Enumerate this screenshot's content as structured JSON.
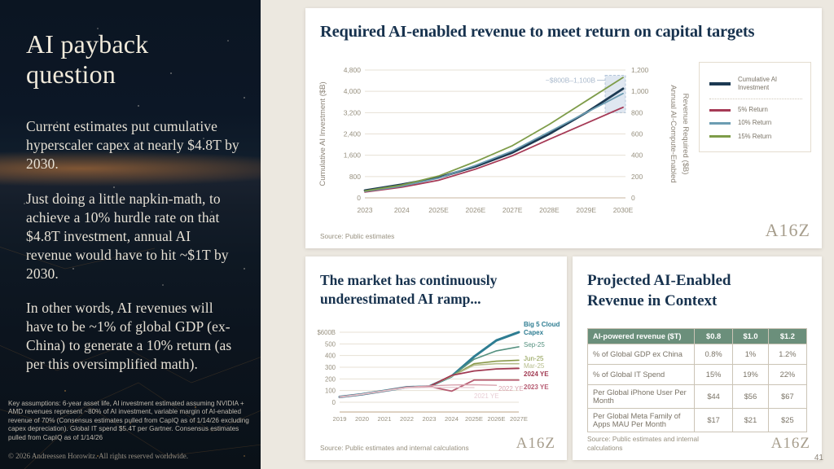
{
  "sidebar": {
    "title": "AI payback question",
    "paragraphs": [
      "Current estimates put cumulative hyperscaler capex at nearly $4.8T by 2030.",
      "Just doing a little napkin-math, to achieve a 10% hurdle rate on that $4.8T investment, annual AI revenue would have to hit ~$1T by 2030.",
      "In other words, AI revenues will have to be ~1% of global GDP (ex-China) to generate a 10% return (as per this oversimplified math)."
    ],
    "footnote": "Key assumptions: 6-year asset life, AI investment estimated assuming NVIDIA + AMD revenues represent ~80% of AI investment, variable margin of AI-enabled revenue of 70% (Consensus estimates pulled from CapIQ as of 1/14/26 excluding capex depreciation). Global IT spend $5.4T per Gartner. Consensus estimates pulled from CapIQ as of 1/14/26",
    "copyright": "© 2026 Andreessen Horowitz. All rights reserved worldwide."
  },
  "page_number": "41",
  "logo_text": "A16Z",
  "chart_data": [
    {
      "type": "line",
      "title": "Required AI-enabled revenue to meet return on capital targets",
      "source": "Source: Public estimates",
      "categories": [
        "2023",
        "2024",
        "2025E",
        "2026E",
        "2027E",
        "2028E",
        "2029E",
        "2030E"
      ],
      "left_axis": {
        "label": "Cumulative AI Investment ($B)",
        "max": 4800,
        "ticks_top_down": [
          "4,800",
          "4,000",
          "3,200",
          "2,400",
          "1,600",
          "800",
          "0"
        ]
      },
      "right_axis": {
        "label_lines": [
          "Annual AI-Compute-Enabled",
          "Revenue Required ($B)"
        ],
        "max": 1200,
        "ticks_top_down": [
          "1,200",
          "1,000",
          "800",
          "600",
          "400",
          "200",
          "0"
        ]
      },
      "annotation": {
        "text": "~$800B–1,100B",
        "band_right_axis": [
          800,
          1150
        ]
      },
      "legend_position": "right",
      "grid": true,
      "series": [
        {
          "name": "Cumulative AI Investment",
          "axis": "left",
          "color": "#1C3A52",
          "width": 2.8,
          "values": [
            280,
            500,
            760,
            1180,
            1700,
            2400,
            3200,
            4100
          ]
        },
        {
          "name": "5% Return",
          "axis": "right",
          "color": "#A63A56",
          "width": 1.8,
          "values": [
            55,
            100,
            165,
            270,
            395,
            550,
            700,
            850
          ]
        },
        {
          "name": "10% Return",
          "axis": "right",
          "color": "#6C9DB2",
          "width": 1.8,
          "values": [
            60,
            110,
            185,
            305,
            440,
            620,
            800,
            980
          ]
        },
        {
          "name": "15% Return",
          "axis": "right",
          "color": "#7E9C49",
          "width": 1.8,
          "values": [
            65,
            120,
            205,
            340,
            490,
            690,
            910,
            1130
          ]
        }
      ]
    },
    {
      "type": "line",
      "title": "The market has continuously underestimated AI ramp...",
      "source": "Source: Public estimates and internal calculations",
      "categories": [
        "2019",
        "2020",
        "2021",
        "2022",
        "2023",
        "2024",
        "2025E",
        "2026E",
        "2027E"
      ],
      "y_axis": {
        "max": 600,
        "ticks_top_down": [
          "$600B",
          "500",
          "400",
          "300",
          "200",
          "100",
          "0"
        ]
      },
      "grid": true,
      "series": [
        {
          "name": "Big 5 Cloud Capex",
          "color": "#2E7D92",
          "width": 3,
          "values": [
            45,
            68,
            98,
            128,
            135,
            222,
            390,
            530,
            600
          ]
        },
        {
          "name": "Sep-25",
          "color": "#55917F",
          "width": 1.6,
          "values": [
            45,
            68,
            98,
            128,
            135,
            222,
            368,
            440,
            475
          ]
        },
        {
          "name": "Jun-25",
          "color": "#8A9A4A",
          "width": 1.6,
          "values": [
            45,
            68,
            98,
            128,
            135,
            222,
            330,
            352,
            360
          ]
        },
        {
          "name": "Mar-25",
          "color": "#B6BD8C",
          "width": 1.6,
          "values": [
            45,
            68,
            98,
            128,
            135,
            222,
            318,
            330,
            330
          ]
        },
        {
          "name": "2024 YE",
          "color": "#A13A52",
          "width": 1.8,
          "values": [
            45,
            68,
            98,
            128,
            135,
            230,
            268,
            285,
            290
          ]
        },
        {
          "name": "2023 YE",
          "color": "#B65C72",
          "width": 1.8,
          "values": [
            45,
            68,
            98,
            128,
            135,
            95,
            190,
            190,
            190
          ]
        },
        {
          "name": "2022 YE",
          "color": "#D8A2AE",
          "width": 1.4,
          "values": [
            45,
            68,
            98,
            128,
            140,
            148,
            150,
            145,
            null
          ]
        },
        {
          "name": "2021 YE",
          "color": "#E8CED5",
          "width": 1.4,
          "values": [
            45,
            68,
            98,
            122,
            127,
            127,
            125,
            null,
            null
          ]
        }
      ]
    },
    {
      "type": "table",
      "title": "Projected AI-Enabled Revenue in Context",
      "source": "Source: Public estimates and internal calculations",
      "header": [
        "AI-powered revenue ($T)",
        "$0.8",
        "$1.0",
        "$1.2"
      ],
      "rows": [
        [
          "% of Global GDP ex China",
          "0.8%",
          "1%",
          "1.2%"
        ],
        [
          "% of Global IT Spend",
          "15%",
          "19%",
          "22%"
        ],
        [
          "Per Global iPhone User Per Month",
          "$44",
          "$56",
          "$67"
        ],
        [
          "Per Global Meta Family of Apps MAU Per Month",
          "$17",
          "$21",
          "$25"
        ]
      ],
      "header_bg": "#6B8F7B"
    }
  ]
}
